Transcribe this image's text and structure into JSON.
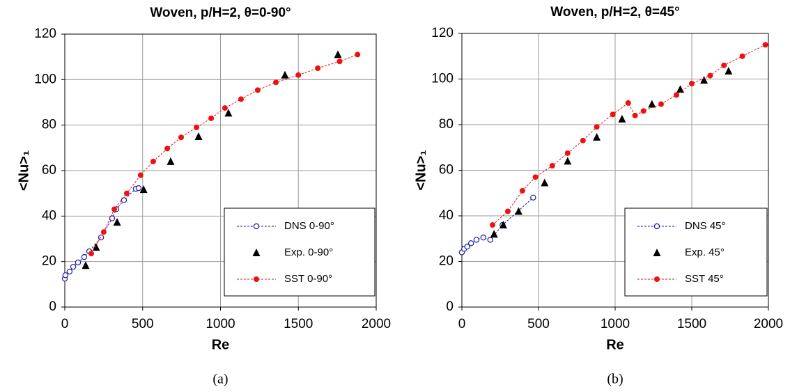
{
  "chart_data": [
    {
      "type": "scatter",
      "title": "Woven, p/H=2, θ=0-90°",
      "x_label": "Re",
      "y_label": "<Nu>₁",
      "caption": "(a)",
      "xlim": [
        0,
        2000
      ],
      "ylim": [
        0,
        120
      ],
      "xticks": [
        0,
        500,
        1000,
        1500,
        2000
      ],
      "yticks": [
        0,
        20,
        40,
        60,
        80,
        100,
        120
      ],
      "grid": true,
      "legend": "lower right",
      "series": [
        {
          "name": "DNS 0-90°",
          "color": "#1a1aa6",
          "marker": "circle-open",
          "line": "dashed",
          "x": [
            0,
            4,
            31,
            54,
            85,
            125,
            157,
            233,
            304,
            331,
            380,
            456,
            474
          ],
          "values": [
            12.5,
            14,
            15.6,
            17.7,
            19.6,
            22,
            24.5,
            30.6,
            39,
            43,
            47,
            52,
            52.3
          ]
        },
        {
          "name": "Exp. 0-90°",
          "color": "#000000",
          "marker": "triangle",
          "line": "none",
          "x": [
            134,
            201,
            336,
            506,
            680,
            859,
            1051,
            1414,
            1754
          ],
          "values": [
            18.3,
            26.3,
            37.3,
            51.7,
            64,
            75,
            85.3,
            102,
            111
          ]
        },
        {
          "name": "SST 0-90°",
          "color": "#ee1111",
          "marker": "circle",
          "line": "dashed",
          "x": [
            170,
            250,
            318,
            398,
            487,
            568,
            658,
            747,
            846,
            940,
            1029,
            1132,
            1239,
            1356,
            1500,
            1625,
            1765,
            1880
          ],
          "values": [
            23.5,
            33,
            43,
            50,
            58,
            64,
            69.7,
            74.6,
            79,
            83,
            87.5,
            91.4,
            95.4,
            98.8,
            102,
            105,
            108,
            111
          ]
        }
      ]
    },
    {
      "type": "scatter",
      "title": "Woven, p/H=2, θ=45°",
      "x_label": "Re",
      "y_label": "<Nu>₁",
      "caption": "(b)",
      "xlim": [
        0,
        2000
      ],
      "ylim": [
        0,
        120
      ],
      "xticks": [
        0,
        500,
        1000,
        1500,
        2000
      ],
      "yticks": [
        0,
        20,
        40,
        60,
        80,
        100,
        120
      ],
      "grid": true,
      "legend": "lower right",
      "series": [
        {
          "name": "DNS 45°",
          "color": "#1a1aa6",
          "marker": "circle-open",
          "line": "dashed",
          "x": [
            0,
            15,
            35,
            60,
            95,
            140,
            185,
            265,
            465
          ],
          "values": [
            24,
            25.5,
            26.5,
            28,
            29.5,
            30.5,
            29.5,
            36,
            48
          ]
        },
        {
          "name": "Exp. 45°",
          "color": "#000000",
          "marker": "triangle",
          "line": "none",
          "x": [
            210,
            270,
            370,
            540,
            690,
            880,
            1045,
            1240,
            1425,
            1580,
            1740
          ],
          "values": [
            32,
            36,
            42,
            54.5,
            64,
            74.5,
            82.5,
            89,
            95.5,
            99.5,
            103.5
          ]
        },
        {
          "name": "SST 45°",
          "color": "#ee1111",
          "marker": "circle",
          "line": "dashed",
          "x": [
            200,
            300,
            395,
            480,
            590,
            690,
            790,
            880,
            985,
            1085,
            1130,
            1185,
            1300,
            1400,
            1500,
            1620,
            1710,
            1830,
            1980
          ],
          "values": [
            36,
            42,
            51,
            57,
            62,
            67.5,
            73,
            79,
            84.5,
            89.5,
            84,
            86,
            89,
            93,
            98,
            101.5,
            106,
            110,
            115
          ]
        }
      ]
    }
  ]
}
